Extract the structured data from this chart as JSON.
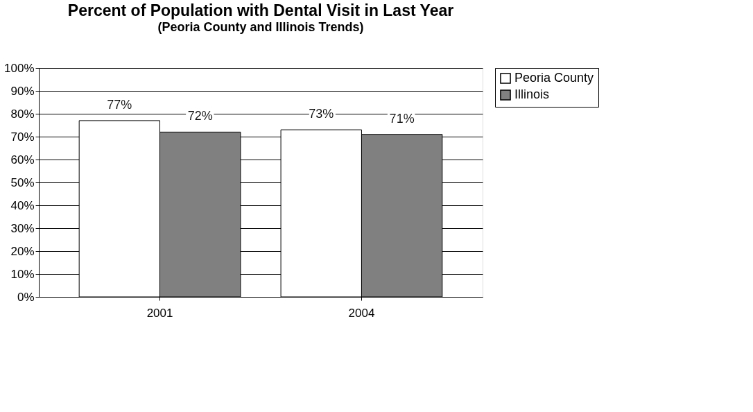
{
  "chart_data": {
    "type": "bar",
    "title": "Percent of Population with Dental Visit in Last Year",
    "subtitle": "(Peoria County and Illinois Trends)",
    "categories": [
      "2001",
      "2004"
    ],
    "series": [
      {
        "name": "Peoria County",
        "color": "#ffffff",
        "values": [
          77,
          73
        ],
        "value_labels": [
          "77%",
          "73%"
        ]
      },
      {
        "name": "Illinois",
        "color": "#808080",
        "values": [
          72,
          71
        ],
        "value_labels": [
          "72%",
          "71%"
        ]
      }
    ],
    "ylim": [
      0,
      100
    ],
    "yticks": [
      {
        "value": 0,
        "label": "0%"
      },
      {
        "value": 10,
        "label": "10%"
      },
      {
        "value": 20,
        "label": "20%"
      },
      {
        "value": 30,
        "label": "30%"
      },
      {
        "value": 40,
        "label": "40%"
      },
      {
        "value": 50,
        "label": "50%"
      },
      {
        "value": 60,
        "label": "60%"
      },
      {
        "value": 70,
        "label": "70%"
      },
      {
        "value": 80,
        "label": "80%"
      },
      {
        "value": 90,
        "label": "90%"
      },
      {
        "value": 100,
        "label": "100%"
      }
    ],
    "grid": "y",
    "legend": "right"
  }
}
